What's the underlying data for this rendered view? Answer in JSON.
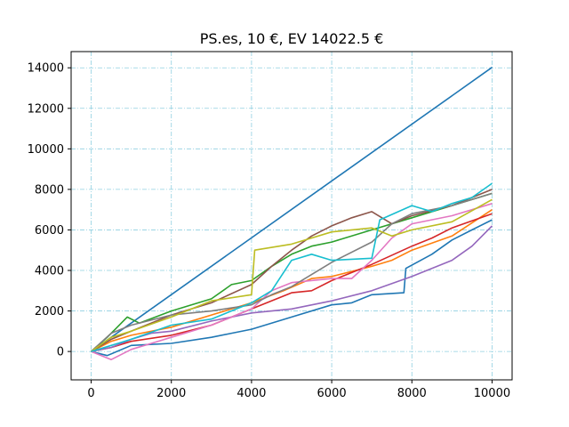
{
  "chart_data": {
    "type": "line",
    "title": "PS.es, 10 €, EV 14022.5 €",
    "xlabel": "",
    "ylabel": "",
    "xlim": [
      -500,
      10500
    ],
    "ylim": [
      -1400,
      14800
    ],
    "xticks": [
      0,
      2000,
      4000,
      6000,
      8000,
      10000
    ],
    "yticks": [
      0,
      2000,
      4000,
      6000,
      8000,
      10000,
      12000,
      14000
    ],
    "grid": true,
    "series": [
      {
        "color": "#1f77b4",
        "points": [
          [
            0,
            0
          ],
          [
            10000,
            14022
          ]
        ]
      },
      {
        "color": "#1f77b4",
        "points": [
          [
            0,
            0
          ],
          [
            400,
            -200
          ],
          [
            1000,
            300
          ],
          [
            2000,
            400
          ],
          [
            3000,
            700
          ],
          [
            3500,
            900
          ],
          [
            4000,
            1100
          ],
          [
            5000,
            1700
          ],
          [
            6000,
            2300
          ],
          [
            6500,
            2400
          ],
          [
            7000,
            2800
          ],
          [
            7800,
            2900
          ],
          [
            7850,
            4100
          ],
          [
            8500,
            4800
          ],
          [
            9000,
            5500
          ],
          [
            9500,
            6000
          ],
          [
            10000,
            6500
          ]
        ]
      },
      {
        "color": "#ff7f0e",
        "points": [
          [
            0,
            0
          ],
          [
            500,
            500
          ],
          [
            1000,
            800
          ],
          [
            2000,
            1200
          ],
          [
            3000,
            1800
          ],
          [
            4000,
            2400
          ],
          [
            4800,
            3000
          ],
          [
            5500,
            3600
          ],
          [
            6000,
            3700
          ],
          [
            7000,
            4200
          ],
          [
            7500,
            4500
          ],
          [
            8000,
            5000
          ],
          [
            9000,
            5700
          ],
          [
            10000,
            7000
          ]
        ]
      },
      {
        "color": "#2ca02c",
        "points": [
          [
            0,
            0
          ],
          [
            400,
            700
          ],
          [
            900,
            1700
          ],
          [
            1200,
            1400
          ],
          [
            2000,
            2000
          ],
          [
            3000,
            2600
          ],
          [
            3500,
            3300
          ],
          [
            4000,
            3500
          ],
          [
            4500,
            4200
          ],
          [
            5000,
            4800
          ],
          [
            5500,
            5200
          ],
          [
            6000,
            5400
          ],
          [
            7000,
            6000
          ],
          [
            8000,
            6600
          ],
          [
            9000,
            7200
          ],
          [
            10000,
            7800
          ]
        ]
      },
      {
        "color": "#d62728",
        "points": [
          [
            0,
            0
          ],
          [
            500,
            200
          ],
          [
            1000,
            500
          ],
          [
            2000,
            800
          ],
          [
            3000,
            1300
          ],
          [
            4000,
            2100
          ],
          [
            5000,
            2900
          ],
          [
            5500,
            3000
          ],
          [
            6000,
            3500
          ],
          [
            7000,
            4300
          ],
          [
            8000,
            5200
          ],
          [
            8500,
            5600
          ],
          [
            9000,
            6100
          ],
          [
            10000,
            6800
          ]
        ]
      },
      {
        "color": "#9467bd",
        "points": [
          [
            0,
            0
          ],
          [
            500,
            200
          ],
          [
            1000,
            600
          ],
          [
            1500,
            900
          ],
          [
            2000,
            1000
          ],
          [
            3000,
            1500
          ],
          [
            4000,
            1900
          ],
          [
            5000,
            2100
          ],
          [
            6000,
            2500
          ],
          [
            7000,
            3000
          ],
          [
            8000,
            3700
          ],
          [
            9000,
            4500
          ],
          [
            9500,
            5200
          ],
          [
            10000,
            6200
          ]
        ]
      },
      {
        "color": "#8c564b",
        "points": [
          [
            0,
            0
          ],
          [
            500,
            600
          ],
          [
            1000,
            1000
          ],
          [
            2000,
            1800
          ],
          [
            3000,
            2400
          ],
          [
            4000,
            3300
          ],
          [
            4500,
            4200
          ],
          [
            5000,
            5000
          ],
          [
            5500,
            5700
          ],
          [
            6000,
            6200
          ],
          [
            6500,
            6600
          ],
          [
            7000,
            6900
          ],
          [
            7500,
            6300
          ],
          [
            8000,
            6700
          ],
          [
            9000,
            7200
          ],
          [
            10000,
            8000
          ]
        ]
      },
      {
        "color": "#e377c2",
        "points": [
          [
            0,
            0
          ],
          [
            500,
            -400
          ],
          [
            1000,
            100
          ],
          [
            2000,
            700
          ],
          [
            3000,
            1300
          ],
          [
            4000,
            2100
          ],
          [
            4500,
            3000
          ],
          [
            5000,
            3400
          ],
          [
            6000,
            3600
          ],
          [
            6500,
            3600
          ],
          [
            7000,
            4500
          ],
          [
            7500,
            5600
          ],
          [
            8000,
            6300
          ],
          [
            9000,
            6700
          ],
          [
            10000,
            7300
          ]
        ]
      },
      {
        "color": "#7f7f7f",
        "points": [
          [
            0,
            0
          ],
          [
            500,
            900
          ],
          [
            1000,
            1300
          ],
          [
            2000,
            1800
          ],
          [
            3000,
            2000
          ],
          [
            4000,
            2300
          ],
          [
            4500,
            2800
          ],
          [
            5000,
            3200
          ],
          [
            6000,
            4400
          ],
          [
            7000,
            5400
          ],
          [
            7500,
            6300
          ],
          [
            8000,
            6800
          ],
          [
            9000,
            7200
          ],
          [
            10000,
            7800
          ]
        ]
      },
      {
        "color": "#bcbd22",
        "points": [
          [
            0,
            0
          ],
          [
            500,
            700
          ],
          [
            1000,
            1000
          ],
          [
            2000,
            1700
          ],
          [
            3000,
            2500
          ],
          [
            4000,
            2800
          ],
          [
            4080,
            5000
          ],
          [
            5000,
            5300
          ],
          [
            6000,
            5900
          ],
          [
            7000,
            6100
          ],
          [
            7500,
            5700
          ],
          [
            8000,
            6000
          ],
          [
            9000,
            6400
          ],
          [
            10000,
            7500
          ]
        ]
      },
      {
        "color": "#17becf",
        "points": [
          [
            0,
            0
          ],
          [
            500,
            300
          ],
          [
            1000,
            600
          ],
          [
            2000,
            1300
          ],
          [
            3000,
            1600
          ],
          [
            4000,
            2400
          ],
          [
            4500,
            3000
          ],
          [
            5000,
            4500
          ],
          [
            5500,
            4800
          ],
          [
            6000,
            4500
          ],
          [
            7000,
            4600
          ],
          [
            7200,
            6500
          ],
          [
            8000,
            7200
          ],
          [
            8500,
            6900
          ],
          [
            9000,
            7300
          ],
          [
            9500,
            7600
          ],
          [
            10000,
            8300
          ]
        ]
      }
    ]
  }
}
